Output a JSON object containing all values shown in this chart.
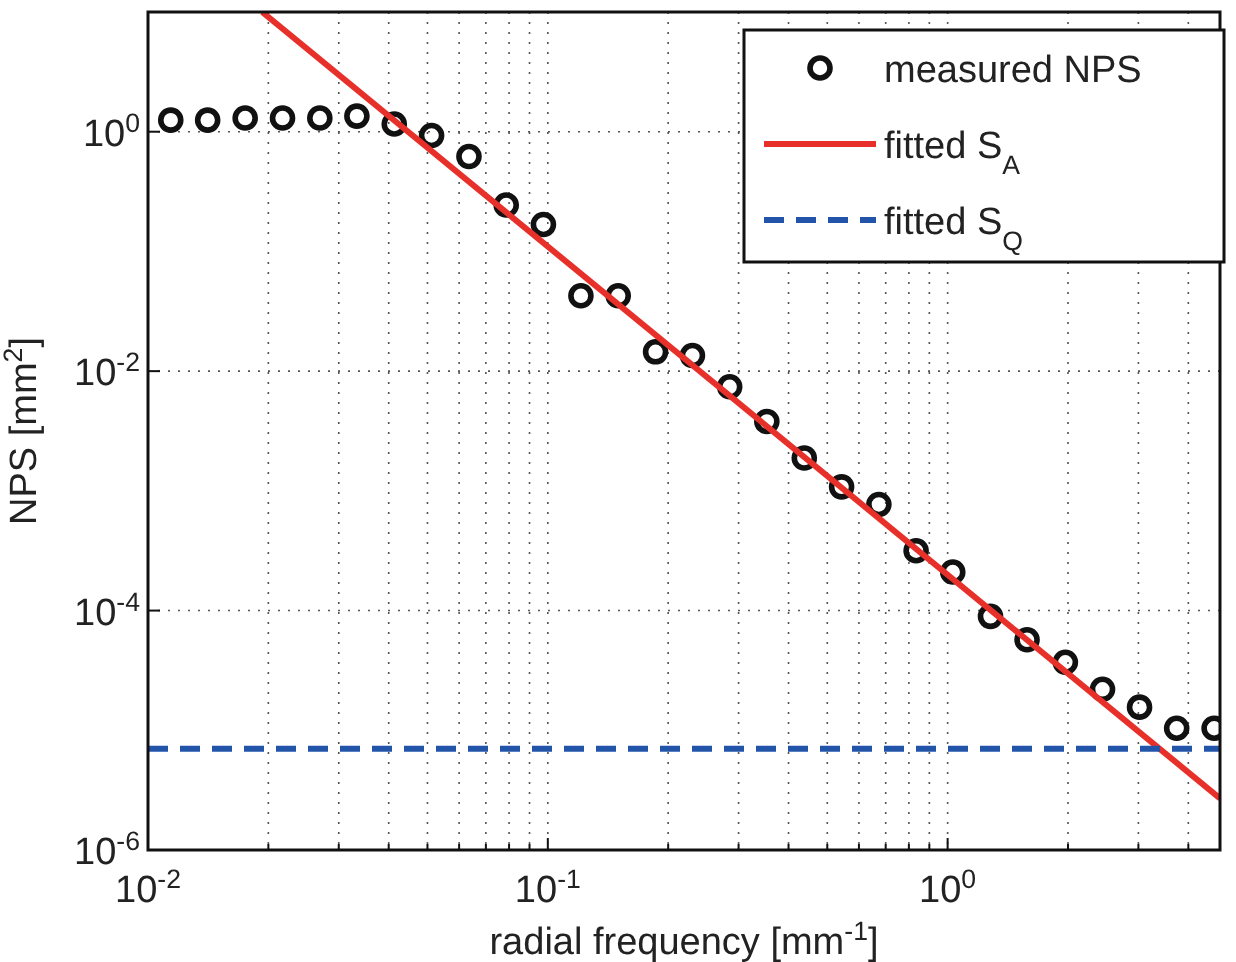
{
  "chart_data": {
    "type": "line",
    "xlabel": "radial frequency [mm$^{-1}$]",
    "ylabel": "NPS [mm$^{2}$]",
    "log": "xy",
    "grid": true,
    "legend": "top right",
    "xlim": [
      0.01,
      4.8
    ],
    "ylim": [
      1e-06,
      10
    ],
    "xticks": [
      {
        "value": 0.01,
        "label": "10$^{-2}$"
      },
      {
        "value": 0.02,
        "label": null
      },
      {
        "value": 0.03,
        "label": null
      },
      {
        "value": 0.04,
        "label": null
      },
      {
        "value": 0.05,
        "label": null
      },
      {
        "value": 0.06,
        "label": null
      },
      {
        "value": 0.07,
        "label": null
      },
      {
        "value": 0.08,
        "label": null
      },
      {
        "value": 0.09,
        "label": null
      },
      {
        "value": 0.1,
        "label": "10$^{-1}$"
      },
      {
        "value": 0.2,
        "label": null
      },
      {
        "value": 0.3,
        "label": null
      },
      {
        "value": 0.4,
        "label": null
      },
      {
        "value": 0.5,
        "label": null
      },
      {
        "value": 0.6,
        "label": null
      },
      {
        "value": 0.7,
        "label": null
      },
      {
        "value": 0.8,
        "label": null
      },
      {
        "value": 0.9,
        "label": null
      },
      {
        "value": 1,
        "label": "10$^{0}$"
      },
      {
        "value": 2,
        "label": null
      },
      {
        "value": 3,
        "label": null
      },
      {
        "value": 4,
        "label": null
      }
    ],
    "yticks": [
      {
        "value": 1e-06,
        "label": "10$^{-6}$"
      },
      {
        "value": 0.0001,
        "label": "10$^{-4}$"
      },
      {
        "value": 0.01,
        "label": "10$^{-2}$"
      },
      {
        "value": 1,
        "label": "10$^{0}$"
      }
    ],
    "series": [
      {
        "name": "measured NPS",
        "type": "scatter",
        "marker": "circle",
        "color": "#111111",
        "x": [
          0.0114,
          0.0141,
          0.0175,
          0.0217,
          0.0269,
          0.0333,
          0.0413,
          0.0512,
          0.0635,
          0.0787,
          0.0975,
          0.121,
          0.15,
          0.186,
          0.23,
          0.285,
          0.353,
          0.438,
          0.543,
          0.673,
          0.834,
          1.03,
          1.28,
          1.58,
          1.97,
          2.44,
          3.02,
          3.74,
          4.64
        ],
        "values": [
          1.25,
          1.25,
          1.3,
          1.3,
          1.3,
          1.35,
          1.16,
          0.93,
          0.62,
          0.244,
          0.168,
          0.0426,
          0.0426,
          0.0145,
          0.0135,
          0.0074,
          0.0038,
          0.00188,
          0.00108,
          0.00077,
          0.000316,
          0.00021,
          8.95e-05,
          5.7e-05,
          3.7e-05,
          2.2e-05,
          1.56e-05,
          1.04e-05,
          1.04e-05
        ]
      },
      {
        "name": "fitted S$_{A}$",
        "line_style": "solid",
        "color": "#e8302a",
        "x": [
          0.0193,
          4.8
        ],
        "values": [
          10,
          2.7e-06
        ]
      },
      {
        "name": "fitted S$_{Q}$",
        "line_style": "dashed",
        "color": "#2255aa",
        "x": [
          0.01,
          4.8
        ],
        "values": [
          7e-06,
          7e-06
        ]
      }
    ]
  }
}
